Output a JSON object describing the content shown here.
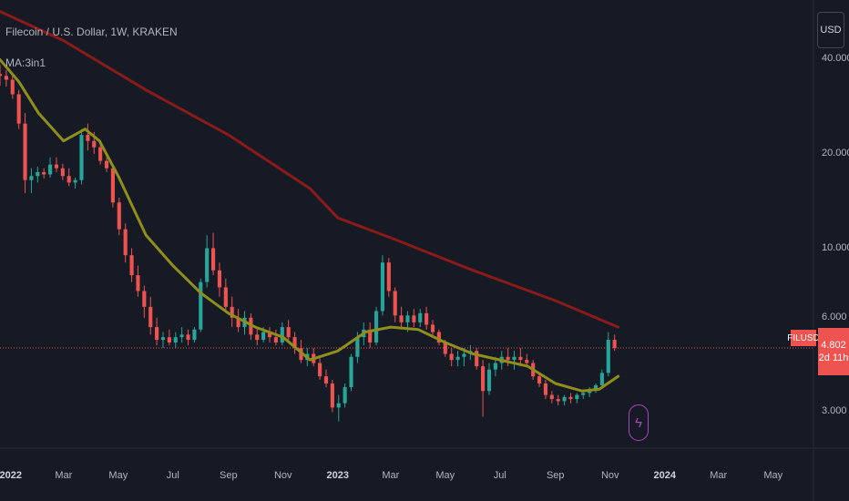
{
  "legend": {
    "title": "Filecoin / U.S. Dollar, 1W, KRAKEN",
    "indicator": "MA:3in1"
  },
  "currency": "USD",
  "price_axis": {
    "labels": [
      "40.000",
      "20.000",
      "10.000",
      "6.000",
      "3.000"
    ]
  },
  "time_axis": {
    "labels": [
      {
        "text": "2022",
        "major": true
      },
      {
        "text": "Mar",
        "major": false
      },
      {
        "text": "May",
        "major": false
      },
      {
        "text": "Jul",
        "major": false
      },
      {
        "text": "Sep",
        "major": false
      },
      {
        "text": "Nov",
        "major": false
      },
      {
        "text": "2023",
        "major": true
      },
      {
        "text": "Mar",
        "major": false
      },
      {
        "text": "May",
        "major": false
      },
      {
        "text": "Jul",
        "major": false
      },
      {
        "text": "Sep",
        "major": false
      },
      {
        "text": "Nov",
        "major": false
      },
      {
        "text": "2024",
        "major": true
      },
      {
        "text": "Mar",
        "major": false
      },
      {
        "text": "May",
        "major": false
      }
    ]
  },
  "last_price": {
    "symbol": "FILUSD",
    "price": "4.802",
    "countdown": "2d 11h"
  },
  "colors": {
    "background": "#161a25",
    "up": "#26a69a",
    "down": "#ef5350",
    "ma_slow": "#8b1a1a",
    "ma_fast": "#8f8f1a",
    "grid": "#2a2e39"
  },
  "chart_data": {
    "type": "candlestick",
    "log_scale": true,
    "grid": false,
    "y_range": [
      2.3,
      62
    ],
    "x_range": [
      "2021-12-20",
      "2024-06-15"
    ],
    "x_ticks": [
      "2022-01-01",
      "2022-03-01",
      "2022-05-01",
      "2022-07-01",
      "2022-09-01",
      "2022-11-01",
      "2023-01-01",
      "2023-03-01",
      "2023-05-01",
      "2023-07-01",
      "2023-09-01",
      "2023-11-01",
      "2024-01-01",
      "2024-03-01",
      "2024-05-01"
    ],
    "y_ticks": [
      40,
      20,
      10,
      6,
      3
    ],
    "candles_start": "2021-12-20",
    "candles_interval_days": 7,
    "candles": [
      [
        36,
        38.5,
        33,
        35.5
      ],
      [
        35.5,
        37,
        32.8,
        34.5
      ],
      [
        34.5,
        36,
        30,
        31
      ],
      [
        31,
        32,
        24,
        25
      ],
      [
        25,
        27,
        15,
        16.5
      ],
      [
        16.5,
        18,
        15,
        17
      ],
      [
        17,
        18.2,
        16.2,
        17.5
      ],
      [
        17.5,
        18,
        16.7,
        17.2
      ],
      [
        17.2,
        19.5,
        16.8,
        18.5
      ],
      [
        18.5,
        19.5,
        17.5,
        18
      ],
      [
        18,
        18.6,
        16.5,
        17
      ],
      [
        17,
        18,
        15.8,
        16.2
      ],
      [
        16.2,
        16.8,
        15.5,
        16.5
      ],
      [
        16.5,
        24,
        16,
        23
      ],
      [
        23,
        25,
        20.5,
        22
      ],
      [
        22,
        23.5,
        20,
        21
      ],
      [
        21,
        22,
        18.5,
        19
      ],
      [
        19,
        19.5,
        17.5,
        18
      ],
      [
        18,
        18.5,
        13.5,
        14
      ],
      [
        14,
        14.5,
        11,
        11.5
      ],
      [
        11.5,
        12,
        9,
        9.5
      ],
      [
        9.5,
        10,
        7.8,
        8.2
      ],
      [
        8.2,
        8.8,
        7,
        7.3
      ],
      [
        7.3,
        7.6,
        6,
        6.5
      ],
      [
        6.5,
        7,
        5.3,
        5.6
      ],
      [
        5.6,
        6,
        4.9,
        5.1
      ],
      [
        5.1,
        5.4,
        4.8,
        5.2
      ],
      [
        5.2,
        5.5,
        4.9,
        5.0
      ],
      [
        5.0,
        5.4,
        4.8,
        5.2
      ],
      [
        5.2,
        5.6,
        5.0,
        5.3
      ],
      [
        5.3,
        5.5,
        4.9,
        5.1
      ],
      [
        5.1,
        5.6,
        5.0,
        5.5
      ],
      [
        5.5,
        8,
        5.4,
        7.8
      ],
      [
        7.8,
        11,
        7.5,
        10
      ],
      [
        10,
        11.2,
        8.2,
        8.5
      ],
      [
        8.5,
        9,
        7,
        7.5
      ],
      [
        7.5,
        8,
        6.3,
        6.5
      ],
      [
        6.5,
        7,
        5.6,
        6
      ],
      [
        6,
        6.4,
        5.4,
        5.6
      ],
      [
        5.6,
        6.3,
        5.3,
        6
      ],
      [
        6,
        6.2,
        5.1,
        5.3
      ],
      [
        5.3,
        5.6,
        4.9,
        5.1
      ],
      [
        5.1,
        5.6,
        5,
        5.4
      ],
      [
        5.4,
        5.6,
        5,
        5.2
      ],
      [
        5.2,
        5.5,
        4.9,
        5
      ],
      [
        5,
        5.8,
        4.9,
        5.6
      ],
      [
        5.6,
        5.9,
        5,
        5.2
      ],
      [
        5.2,
        5.4,
        4.6,
        4.8
      ],
      [
        4.8,
        5.1,
        4.3,
        4.4
      ],
      [
        4.4,
        4.8,
        4.2,
        4.6
      ],
      [
        4.6,
        4.8,
        4.2,
        4.3
      ],
      [
        4.3,
        4.5,
        3.8,
        3.9
      ],
      [
        3.9,
        4.1,
        3.6,
        3.7
      ],
      [
        3.7,
        3.8,
        3.0,
        3.1
      ],
      [
        3.1,
        3.4,
        2.8,
        3.2
      ],
      [
        3.2,
        3.7,
        3.1,
        3.6
      ],
      [
        3.6,
        4.6,
        3.5,
        4.5
      ],
      [
        4.5,
        5.4,
        4.3,
        5.2
      ],
      [
        5.2,
        5.8,
        4.9,
        5.5
      ],
      [
        5.5,
        5.8,
        4.8,
        5.0
      ],
      [
        5.0,
        6.5,
        4.9,
        6.3
      ],
      [
        6.3,
        9.5,
        6.1,
        9
      ],
      [
        9,
        9.3,
        7,
        7.3
      ],
      [
        7.3,
        7.5,
        5.8,
        6.1
      ],
      [
        6.1,
        6.5,
        5.5,
        5.8
      ],
      [
        5.8,
        6.3,
        5.4,
        6.1
      ],
      [
        6.1,
        6.4,
        5.6,
        5.8
      ],
      [
        5.8,
        6.4,
        5.6,
        6.2
      ],
      [
        6.2,
        6.5,
        5.5,
        5.7
      ],
      [
        5.7,
        5.9,
        5.2,
        5.4
      ],
      [
        5.4,
        5.5,
        4.9,
        5.0
      ],
      [
        5.0,
        5.1,
        4.5,
        4.6
      ],
      [
        4.6,
        4.8,
        4.2,
        4.4
      ],
      [
        4.4,
        4.7,
        4.2,
        4.5
      ],
      [
        4.5,
        4.8,
        4.2,
        4.6
      ],
      [
        4.6,
        4.9,
        4.4,
        4.7
      ],
      [
        4.7,
        4.8,
        4.1,
        4.2
      ],
      [
        4.2,
        4.4,
        2.9,
        3.5
      ],
      [
        3.5,
        4.3,
        3.4,
        4.1
      ],
      [
        4.1,
        4.5,
        3.9,
        4.3
      ],
      [
        4.3,
        4.7,
        4.1,
        4.5
      ],
      [
        4.5,
        4.8,
        4.2,
        4.4
      ],
      [
        4.4,
        4.7,
        4.1,
        4.5
      ],
      [
        4.5,
        4.8,
        4.2,
        4.4
      ],
      [
        4.4,
        4.6,
        4.2,
        4.3
      ],
      [
        4.3,
        4.4,
        3.8,
        3.9
      ],
      [
        3.9,
        4.0,
        3.6,
        3.7
      ],
      [
        3.7,
        3.8,
        3.3,
        3.4
      ],
      [
        3.4,
        3.5,
        3.2,
        3.3
      ],
      [
        3.3,
        3.4,
        3.15,
        3.25
      ],
      [
        3.25,
        3.4,
        3.15,
        3.35
      ],
      [
        3.35,
        3.45,
        3.2,
        3.3
      ],
      [
        3.3,
        3.45,
        3.2,
        3.4
      ],
      [
        3.4,
        3.5,
        3.3,
        3.45
      ],
      [
        3.45,
        3.6,
        3.35,
        3.55
      ],
      [
        3.55,
        3.7,
        3.45,
        3.65
      ],
      [
        3.65,
        4.1,
        3.6,
        4.0
      ],
      [
        4.0,
        5.4,
        3.9,
        5.1
      ],
      [
        5.1,
        5.3,
        4.7,
        4.8
      ]
    ],
    "series": [
      {
        "kind": "moving-average",
        "color": "#8b1a1a",
        "values": [
          [
            "2021-12-20",
            57
          ],
          [
            "2022-03-01",
            46
          ],
          [
            "2022-06-01",
            32
          ],
          [
            "2022-09-01",
            23
          ],
          [
            "2022-12-01",
            15.5
          ],
          [
            "2023-01-01",
            12.5
          ],
          [
            "2023-03-01",
            10.8
          ],
          [
            "2023-06-01",
            8.5
          ],
          [
            "2023-09-01",
            6.8
          ],
          [
            "2023-11-10",
            5.6
          ]
        ]
      },
      {
        "kind": "moving-average",
        "color": "#8f8f1a",
        "values": [
          [
            "2021-12-20",
            40
          ],
          [
            "2022-01-10",
            34
          ],
          [
            "2022-02-01",
            27
          ],
          [
            "2022-03-01",
            22
          ],
          [
            "2022-03-25",
            24
          ],
          [
            "2022-04-10",
            22
          ],
          [
            "2022-05-01",
            17
          ],
          [
            "2022-06-01",
            11
          ],
          [
            "2022-07-01",
            8.8
          ],
          [
            "2022-08-01",
            7.2
          ],
          [
            "2022-09-01",
            6.2
          ],
          [
            "2022-10-01",
            5.6
          ],
          [
            "2022-11-01",
            5.2
          ],
          [
            "2022-12-01",
            4.4
          ],
          [
            "2023-01-01",
            4.7
          ],
          [
            "2023-02-01",
            5.4
          ],
          [
            "2023-03-01",
            5.6
          ],
          [
            "2023-04-01",
            5.5
          ],
          [
            "2023-05-01",
            5.0
          ],
          [
            "2023-06-01",
            4.6
          ],
          [
            "2023-07-01",
            4.4
          ],
          [
            "2023-08-01",
            4.2
          ],
          [
            "2023-09-01",
            3.7
          ],
          [
            "2023-10-01",
            3.5
          ],
          [
            "2023-10-20",
            3.55
          ],
          [
            "2023-11-10",
            3.9
          ]
        ]
      }
    ],
    "last_value": 4.802
  }
}
